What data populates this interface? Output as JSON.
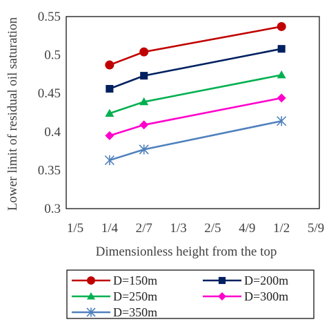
{
  "chart_data": {
    "type": "line",
    "title": "",
    "xlabel": "Dimensionless height from the top",
    "ylabel": "Lower limit of residual oil saturation",
    "x_tick_labels": [
      "1/5",
      "1/4",
      "2/7",
      "1/3",
      "2/5",
      "4/9",
      "1/2",
      "5/9"
    ],
    "y_tick_labels": [
      "0.3",
      "0.35",
      "0.4",
      "0.45",
      "0.5",
      "0.55"
    ],
    "ylim": [
      0.3,
      0.55
    ],
    "grid": false,
    "legend_position": "bottom",
    "x_categories": [
      "1/4",
      "2/7",
      "1/2"
    ],
    "series": [
      {
        "name": "D=150m",
        "color": "#C00000",
        "marker": "circle",
        "values": [
          0.487,
          0.504,
          0.537
        ]
      },
      {
        "name": "D=200m",
        "color": "#002060",
        "marker": "square",
        "values": [
          0.456,
          0.473,
          0.508
        ]
      },
      {
        "name": "D=250m",
        "color": "#00B050",
        "marker": "triangle",
        "values": [
          0.424,
          0.439,
          0.474
        ]
      },
      {
        "name": "D=300m",
        "color": "#FF00CC",
        "marker": "diamond",
        "values": [
          0.395,
          0.409,
          0.444
        ]
      },
      {
        "name": "D=350m",
        "color": "#4F81BD",
        "marker": "star",
        "values": [
          0.363,
          0.377,
          0.414
        ]
      }
    ]
  }
}
